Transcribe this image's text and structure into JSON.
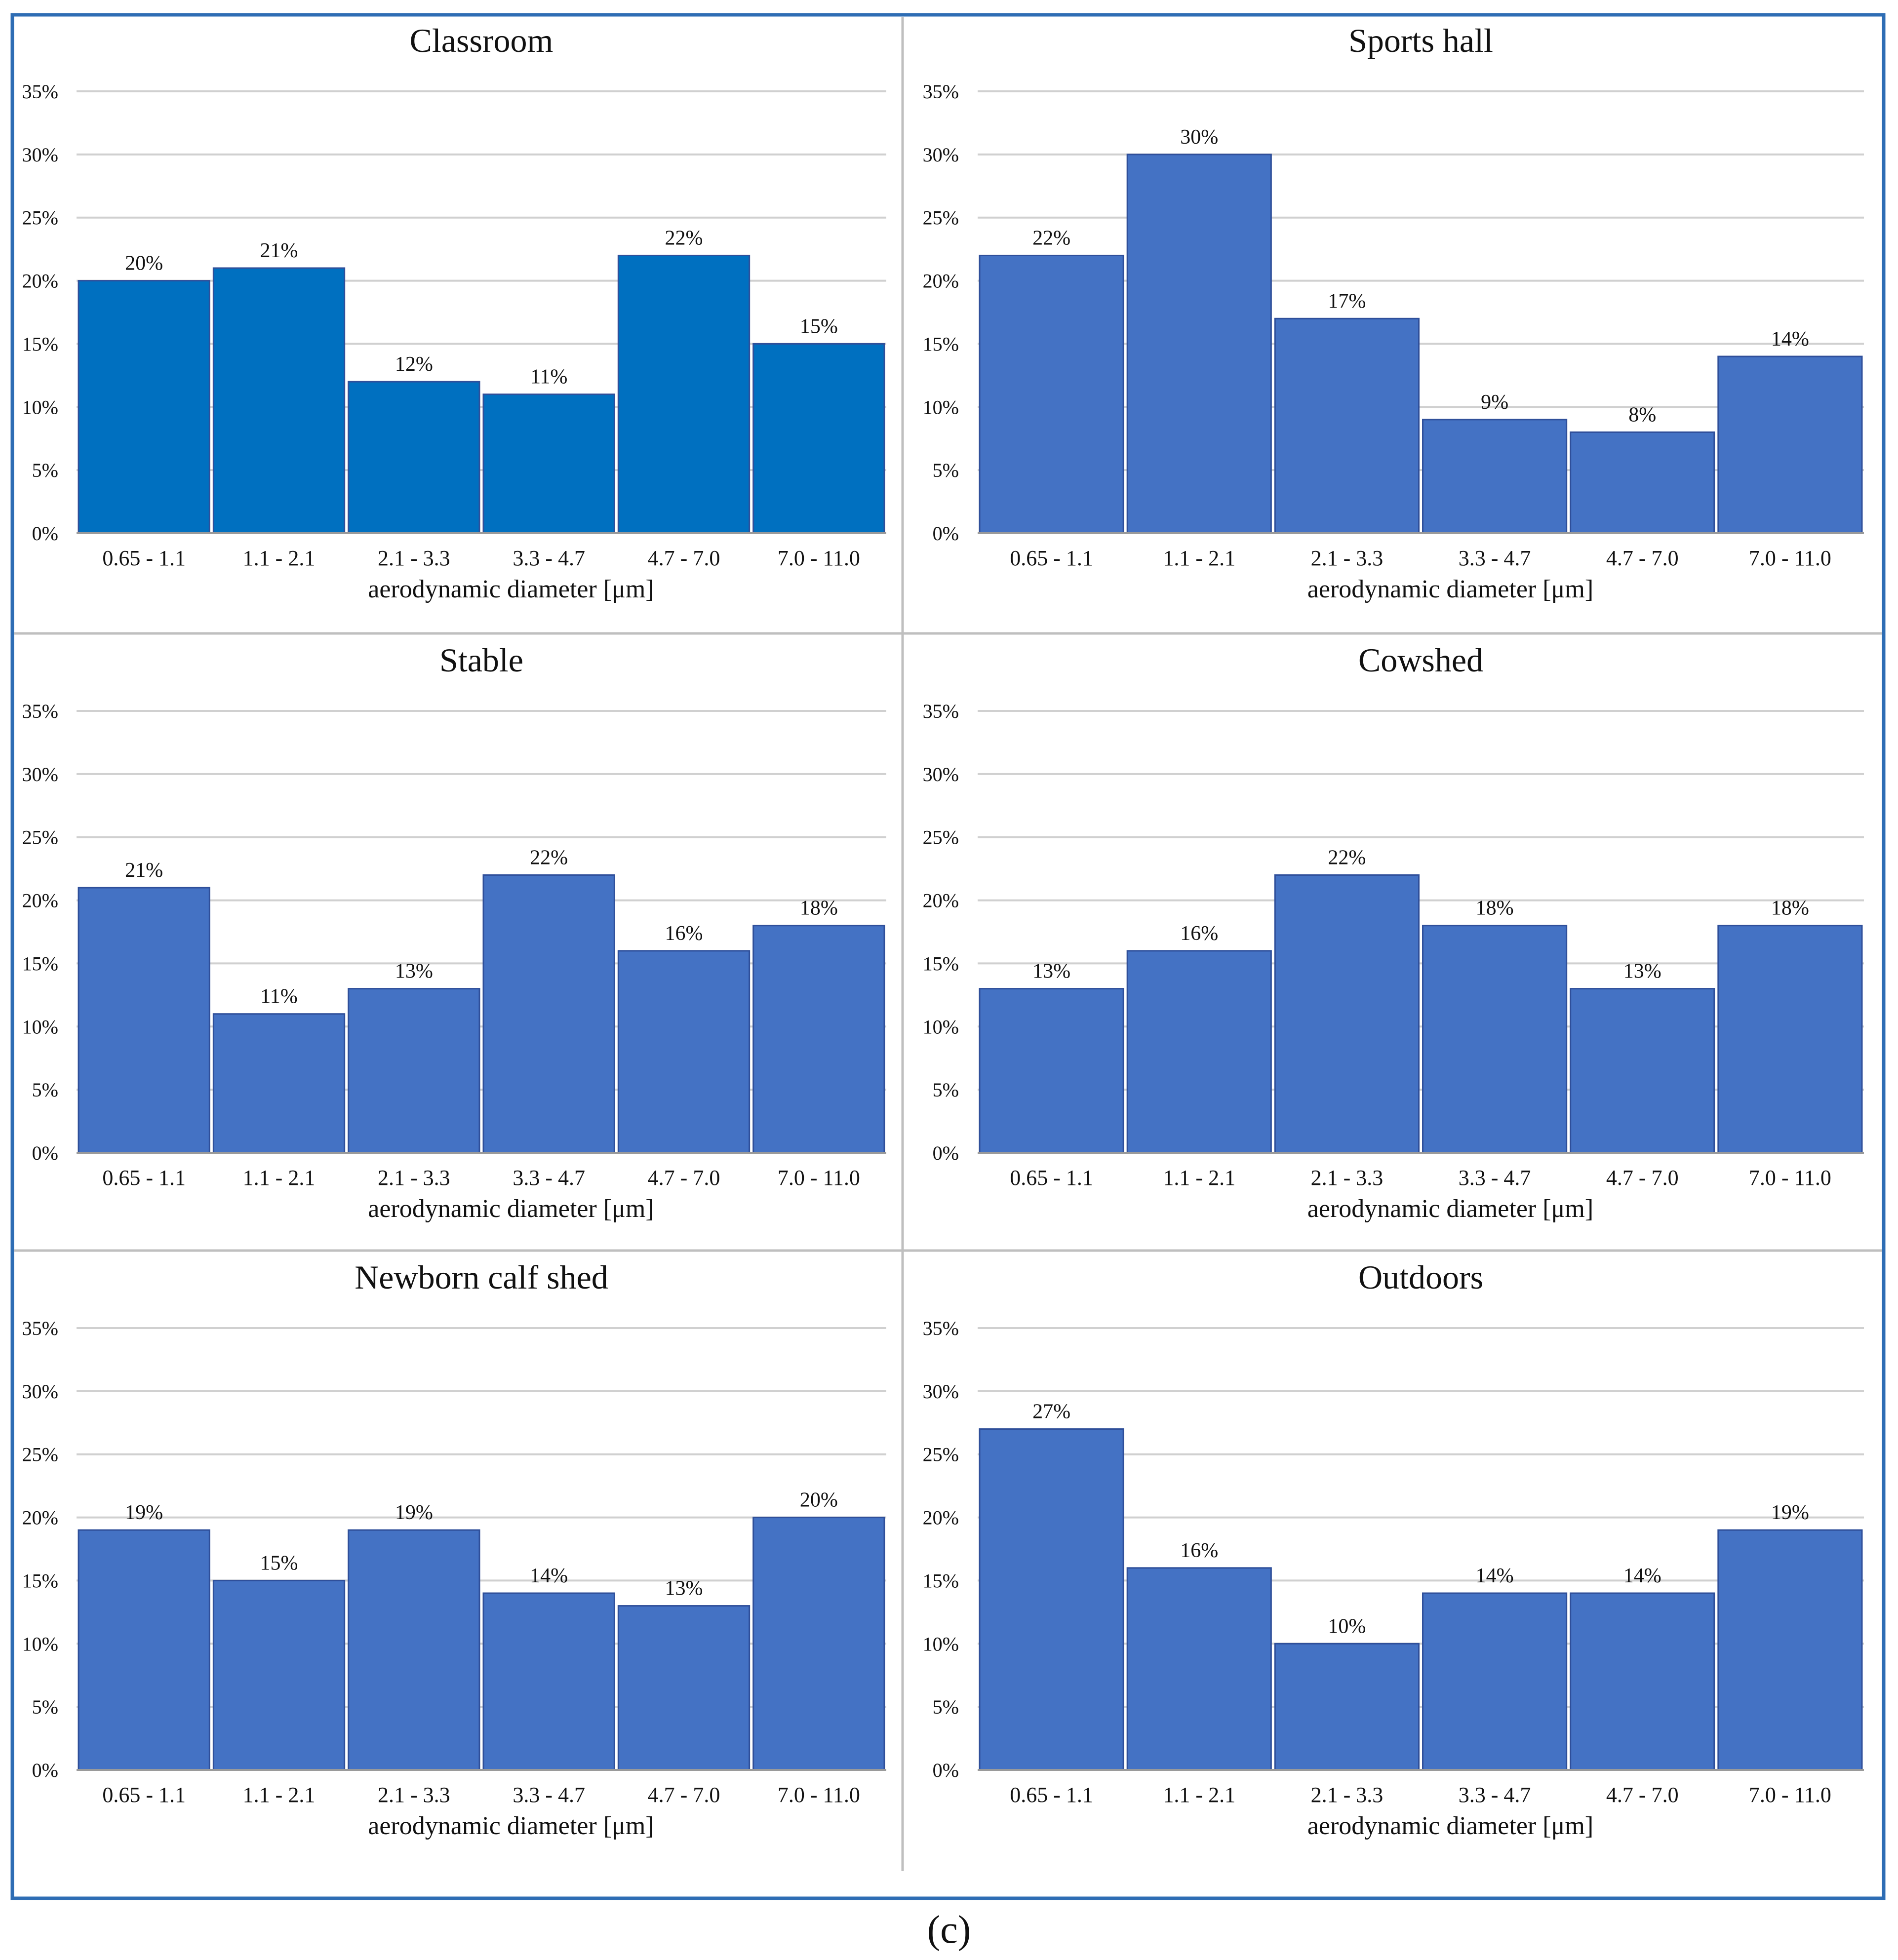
{
  "figure_label": "(c)",
  "colors": {
    "classroom_bar": "#0070C0",
    "bar": "#4472C4",
    "bar_edge": "#2F4F9A",
    "grid": "#D0D0D0",
    "frame": "#2E6DB4",
    "divider": "#BFBFBF",
    "text": "#111111"
  },
  "chart_data": [
    {
      "type": "bar",
      "title": "Classroom",
      "xlabel": "aerodynamic diameter [μm]",
      "ylabel": "",
      "ylim": [
        0,
        35
      ],
      "yticks": [
        "0%",
        "5%",
        "10%",
        "15%",
        "20%",
        "25%",
        "30%",
        "35%"
      ],
      "categories": [
        "0.65 - 1.1",
        "1.1 - 2.1",
        "2.1 - 3.3",
        "3.3 - 4.7",
        "4.7 - 7.0",
        "7.0 - 11.0"
      ],
      "values": [
        20,
        21,
        12,
        11,
        22,
        15
      ],
      "labels": [
        "20%",
        "21%",
        "12%",
        "11%",
        "22%",
        "15%"
      ],
      "grid": true,
      "bar_color": "#0070C0"
    },
    {
      "type": "bar",
      "title": "Sports hall",
      "xlabel": "aerodynamic diameter [μm]",
      "ylabel": "",
      "ylim": [
        0,
        35
      ],
      "yticks": [
        "0%",
        "5%",
        "10%",
        "15%",
        "20%",
        "25%",
        "30%",
        "35%"
      ],
      "categories": [
        "0.65 - 1.1",
        "1.1 - 2.1",
        "2.1 - 3.3",
        "3.3 - 4.7",
        "4.7 - 7.0",
        "7.0 - 11.0"
      ],
      "values": [
        22,
        30,
        17,
        9,
        8,
        14
      ],
      "labels": [
        "22%",
        "30%",
        "17%",
        "9%",
        "8%",
        "14%"
      ],
      "grid": true,
      "bar_color": "#4472C4"
    },
    {
      "type": "bar",
      "title": "Stable",
      "xlabel": "aerodynamic diameter [μm]",
      "ylabel": "",
      "ylim": [
        0,
        35
      ],
      "yticks": [
        "0%",
        "5%",
        "10%",
        "15%",
        "20%",
        "25%",
        "30%",
        "35%"
      ],
      "categories": [
        "0.65 - 1.1",
        "1.1 - 2.1",
        "2.1 - 3.3",
        "3.3 - 4.7",
        "4.7 - 7.0",
        "7.0 - 11.0"
      ],
      "values": [
        21,
        11,
        13,
        22,
        16,
        18
      ],
      "labels": [
        "21%",
        "11%",
        "13%",
        "22%",
        "16%",
        "18%"
      ],
      "grid": true,
      "bar_color": "#4472C4"
    },
    {
      "type": "bar",
      "title": "Cowshed",
      "xlabel": "aerodynamic diameter [μm]",
      "ylabel": "",
      "ylim": [
        0,
        35
      ],
      "yticks": [
        "0%",
        "5%",
        "10%",
        "15%",
        "20%",
        "25%",
        "30%",
        "35%"
      ],
      "categories": [
        "0.65 - 1.1",
        "1.1 - 2.1",
        "2.1 - 3.3",
        "3.3 - 4.7",
        "4.7 - 7.0",
        "7.0 - 11.0"
      ],
      "values": [
        13,
        16,
        22,
        18,
        13,
        18
      ],
      "labels": [
        "13%",
        "16%",
        "22%",
        "18%",
        "13%",
        "18%"
      ],
      "grid": true,
      "bar_color": "#4472C4"
    },
    {
      "type": "bar",
      "title": "Newborn calf shed",
      "xlabel": "aerodynamic diameter [μm]",
      "ylabel": "",
      "ylim": [
        0,
        35
      ],
      "yticks": [
        "0%",
        "5%",
        "10%",
        "15%",
        "20%",
        "25%",
        "30%",
        "35%"
      ],
      "categories": [
        "0.65 - 1.1",
        "1.1 - 2.1",
        "2.1 - 3.3",
        "3.3 - 4.7",
        "4.7 - 7.0",
        "7.0 - 11.0"
      ],
      "values": [
        19,
        15,
        19,
        14,
        13,
        20
      ],
      "labels": [
        "19%",
        "15%",
        "19%",
        "14%",
        "13%",
        "20%"
      ],
      "grid": true,
      "bar_color": "#4472C4"
    },
    {
      "type": "bar",
      "title": "Outdoors",
      "xlabel": "aerodynamic diameter [μm]",
      "ylabel": "",
      "ylim": [
        0,
        35
      ],
      "yticks": [
        "0%",
        "5%",
        "10%",
        "15%",
        "20%",
        "25%",
        "30%",
        "35%"
      ],
      "categories": [
        "0.65 - 1.1",
        "1.1 - 2.1",
        "2.1 - 3.3",
        "3.3 - 4.7",
        "4.7 - 7.0",
        "7.0 - 11.0"
      ],
      "values": [
        27,
        16,
        10,
        14,
        14,
        19
      ],
      "labels": [
        "27%",
        "16%",
        "10%",
        "14%",
        "14%",
        "19%"
      ],
      "grid": true,
      "bar_color": "#4472C4"
    }
  ]
}
